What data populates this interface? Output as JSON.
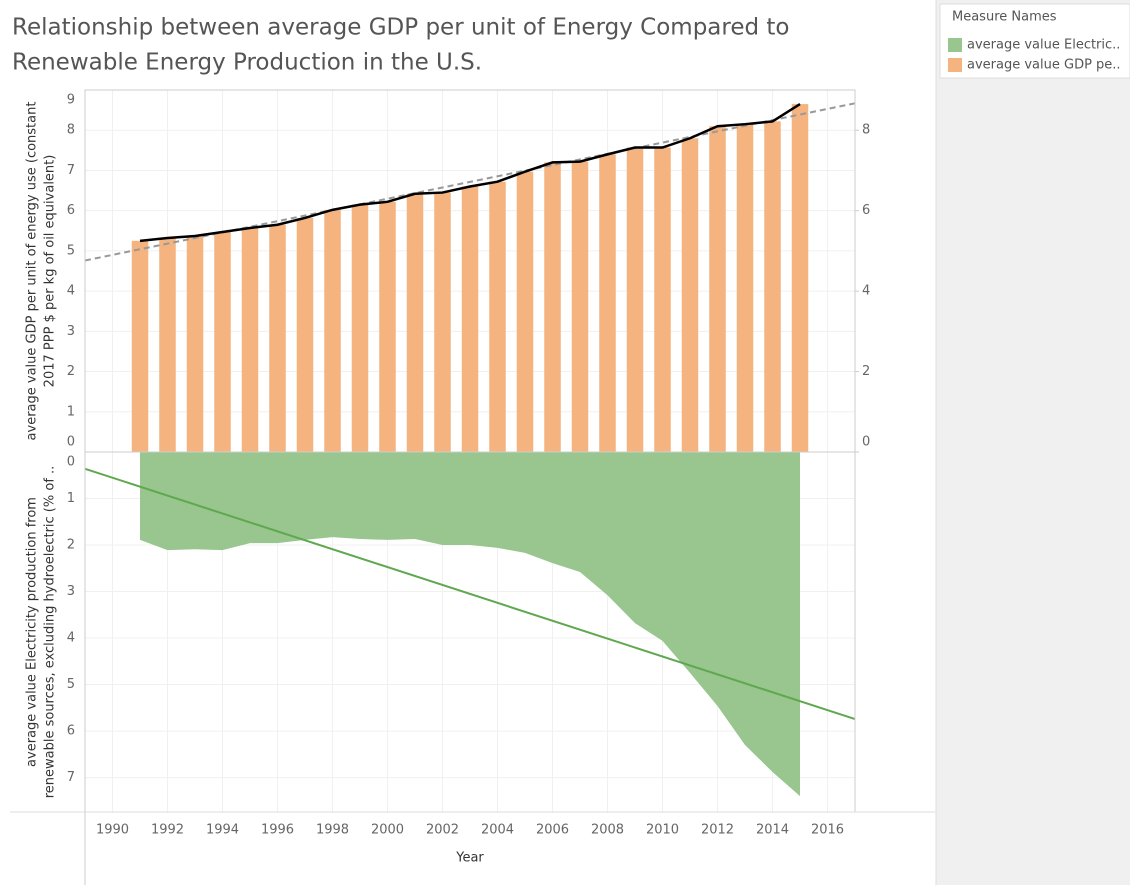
{
  "title": [
    "Relationship between average GDP per unit of Energy Compared to",
    "Renewable Energy Production in the U.S."
  ],
  "legend": {
    "title": "Measure Names"
  },
  "chart_data": [
    {
      "type": "bar",
      "x": [
        1991,
        1992,
        1993,
        1994,
        1995,
        1996,
        1997,
        1998,
        1999,
        2000,
        2001,
        2002,
        2003,
        2004,
        2005,
        2006,
        2007,
        2008,
        2009,
        2010,
        2011,
        2012,
        2013,
        2014,
        2015
      ],
      "y_label": [
        "average value GDP per unit of energy use (constant",
        "2017 PPP $ per kg of oil equivalent)"
      ],
      "series": [
        {
          "name": "average value GDP pe..",
          "color": "#f5b47f",
          "values": [
            5.25,
            5.32,
            5.37,
            5.47,
            5.57,
            5.65,
            5.82,
            6.02,
            6.15,
            6.22,
            6.42,
            6.45,
            6.6,
            6.72,
            6.97,
            7.2,
            7.22,
            7.4,
            7.57,
            7.57,
            7.8,
            8.1,
            8.15,
            8.22,
            8.65
          ]
        }
      ],
      "line_color": "#000000",
      "line_axis": "y2",
      "trend_color": "#999999",
      "xlim": [
        1989,
        2017
      ],
      "ylim": [
        0,
        9
      ],
      "yticks": [
        0,
        1,
        2,
        3,
        4,
        5,
        6,
        7,
        8,
        9
      ],
      "y2lim": [
        0,
        9
      ],
      "y2ticks": [
        0,
        2,
        4,
        6,
        8
      ],
      "grid": true
    },
    {
      "type": "area",
      "x": [
        1991,
        1992,
        1993,
        1994,
        1995,
        1996,
        1997,
        1998,
        1999,
        2000,
        2001,
        2002,
        2003,
        2004,
        2005,
        2006,
        2007,
        2008,
        2009,
        2010,
        2011,
        2012,
        2013,
        2014,
        2015
      ],
      "y_label": [
        "average value Electricity production from",
        "renewable sources, excluding hydroelectric (% of .."
      ],
      "x_label": "Year",
      "series": [
        {
          "name": "average value Electric..",
          "color": "#98c68e",
          "values": [
            1.89,
            2.11,
            2.09,
            2.11,
            1.96,
            1.96,
            1.89,
            1.83,
            1.87,
            1.89,
            1.87,
            2.0,
            2.0,
            2.06,
            2.17,
            2.39,
            2.58,
            3.08,
            3.68,
            4.06,
            4.75,
            5.46,
            6.3,
            6.88,
            7.4
          ]
        }
      ],
      "trend_color": "#5fa84f",
      "xlim": [
        1989,
        2017
      ],
      "xticks": [
        1990,
        1992,
        1994,
        1996,
        1998,
        2000,
        2002,
        2004,
        2006,
        2008,
        2010,
        2012,
        2014,
        2016
      ],
      "ylim": [
        0,
        7.74
      ],
      "yticks": [
        0,
        1,
        2,
        3,
        4,
        5,
        6,
        7
      ],
      "reversed": true,
      "grid": true
    }
  ]
}
